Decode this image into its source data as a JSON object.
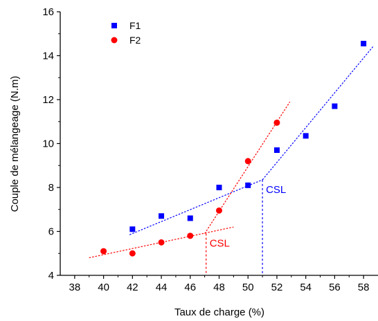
{
  "chart_data": {
    "type": "scatter",
    "xlabel": "Taux de charge (%)",
    "ylabel": "Couple de mélangeage (N.m)",
    "xlim": [
      37,
      59
    ],
    "ylim": [
      4,
      16
    ],
    "xticks": [
      38,
      40,
      42,
      44,
      46,
      48,
      50,
      52,
      54,
      56,
      58
    ],
    "yticks": [
      4,
      6,
      8,
      10,
      12,
      14,
      16
    ],
    "legend_position": "top-left",
    "grid": false,
    "series": [
      {
        "name": "F1",
        "marker": "square",
        "color": "#0000ff",
        "points": [
          [
            42,
            6.1
          ],
          [
            44,
            6.7
          ],
          [
            46,
            6.6
          ],
          [
            48,
            8.0
          ],
          [
            50,
            8.1
          ],
          [
            52,
            9.7
          ],
          [
            54,
            10.35
          ],
          [
            56,
            11.7
          ],
          [
            58,
            14.55
          ]
        ]
      },
      {
        "name": "F2",
        "marker": "circle",
        "color": "#ff0000",
        "points": [
          [
            40,
            5.1
          ],
          [
            42,
            5.0
          ],
          [
            44,
            5.5
          ],
          [
            46,
            5.8
          ],
          [
            48,
            6.95
          ],
          [
            50,
            9.2
          ],
          [
            52,
            10.95
          ]
        ]
      }
    ],
    "trend_lines": [
      {
        "series": "F1",
        "color": "#0000ff",
        "from": [
          41.8,
          5.85
        ],
        "to": [
          51.0,
          8.35
        ]
      },
      {
        "series": "F1",
        "color": "#0000ff",
        "from": [
          51.0,
          8.35
        ],
        "to": [
          58.7,
          14.45
        ]
      },
      {
        "series": "F2",
        "color": "#ff0000",
        "from": [
          39.0,
          4.8
        ],
        "to": [
          49.0,
          6.2
        ]
      },
      {
        "series": "F2",
        "color": "#ff0000",
        "from": [
          47.0,
          5.9
        ],
        "to": [
          52.9,
          11.9
        ]
      }
    ],
    "annotations": [
      {
        "text": "CSL",
        "color": "#0000ff",
        "x": 51.0,
        "y": 8.35,
        "drop_to": 4
      },
      {
        "text": "CSL",
        "color": "#ff0000",
        "x": 47.1,
        "y": 5.9,
        "drop_to": 4
      }
    ]
  }
}
